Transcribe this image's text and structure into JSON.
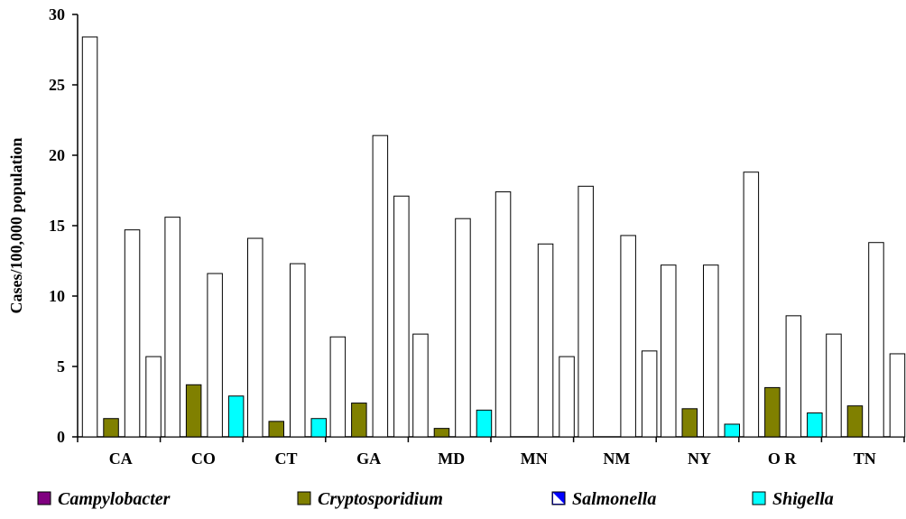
{
  "chart_data": {
    "type": "bar",
    "title": "",
    "xlabel": "",
    "ylabel": "Cases/100,000 population",
    "ylim": [
      0,
      30
    ],
    "yticks": [
      0,
      5,
      10,
      15,
      20,
      25,
      30
    ],
    "grid": false,
    "legend_position": "bottom",
    "categories": [
      "CA",
      "CO",
      "CT",
      "GA",
      "MD",
      "MN",
      "NM",
      "NY",
      "O R",
      "TN"
    ],
    "series": [
      {
        "name": "Campylobacter",
        "color": "#800080",
        "rendered_fill": "#ffffff",
        "values": [
          28.4,
          15.6,
          14.1,
          7.1,
          7.3,
          17.4,
          17.8,
          12.2,
          18.8,
          7.3
        ]
      },
      {
        "name": "Cryptosporidium",
        "color": "#808000",
        "rendered_fill": "#808000",
        "values": [
          1.3,
          3.7,
          1.1,
          2.4,
          0.6,
          null,
          null,
          2.0,
          3.5,
          2.2
        ]
      },
      {
        "name": "Salmonella",
        "color": "#0000ff",
        "rendered_fill": "#ffffff",
        "values": [
          14.7,
          11.6,
          12.3,
          21.4,
          15.5,
          13.7,
          14.3,
          12.2,
          8.6,
          13.8
        ]
      },
      {
        "name": "Shigella",
        "color": "#00ffff",
        "rendered_fill": "#00ffff",
        "values": [
          5.7,
          2.9,
          1.3,
          17.1,
          1.9,
          5.7,
          6.1,
          0.9,
          1.7,
          5.9
        ]
      }
    ],
    "rendered_fill_overrides": [
      {
        "series": "Shigella",
        "category": "CA",
        "fill": "#ffffff"
      },
      {
        "series": "Shigella",
        "category": "GA",
        "fill": "#ffffff"
      },
      {
        "series": "Shigella",
        "category": "MN",
        "fill": "#ffffff"
      },
      {
        "series": "Shigella",
        "category": "NM",
        "fill": "#ffffff"
      },
      {
        "series": "Shigella",
        "category": "TN",
        "fill": "#ffffff"
      },
      {
        "series": "Cryptosporidium",
        "category": "MN",
        "fill": "#ffffff"
      },
      {
        "series": "Cryptosporidium",
        "category": "NM",
        "fill": "#ffffff"
      }
    ]
  }
}
